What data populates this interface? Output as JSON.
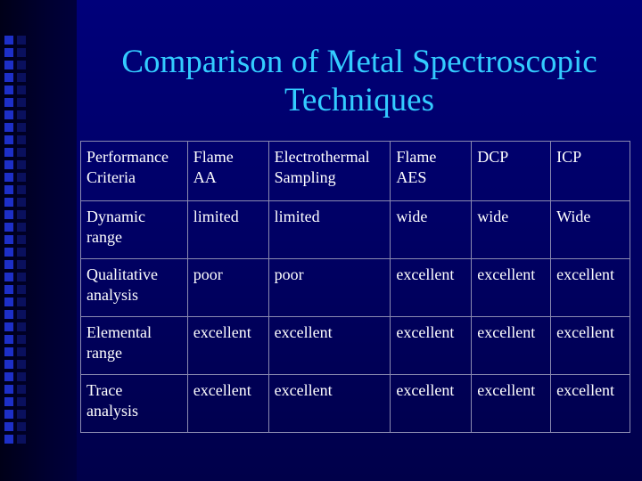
{
  "slide": {
    "title_line1": "Comparison of Metal Spectroscopic",
    "title_line2": "Techniques"
  },
  "table": {
    "header": {
      "criteria": [
        "Performance",
        "Criteria"
      ],
      "flame_aa": [
        "Flame",
        "AA"
      ],
      "electrothermal": [
        "Electrothermal",
        "Sampling"
      ],
      "flame_aes": [
        "Flame",
        "AES"
      ],
      "dcp": "DCP",
      "icp": "ICP"
    },
    "rows": [
      {
        "criterion": [
          "Dynamic",
          "range"
        ],
        "flame_aa": "limited",
        "electrothermal": "limited",
        "flame_aes": "wide",
        "dcp": "wide",
        "icp": "Wide"
      },
      {
        "criterion": [
          "Qualitative",
          "analysis"
        ],
        "flame_aa": "poor",
        "electrothermal": "poor",
        "flame_aes": "excellent",
        "dcp": "excellent",
        "icp": "excellent"
      },
      {
        "criterion": [
          "Elemental",
          "range"
        ],
        "flame_aa": "excellent",
        "electrothermal": "excellent",
        "flame_aes": "excellent",
        "dcp": "excellent",
        "icp": "excellent"
      },
      {
        "criterion": [
          "Trace",
          "analysis"
        ],
        "flame_aa": "excellent",
        "electrothermal": "excellent",
        "flame_aes": "excellent",
        "dcp": "excellent",
        "icp": "excellent"
      }
    ]
  },
  "colors": {
    "background": "#000066",
    "title": "#33ccff",
    "text": "#ffffff",
    "decor_squares": "#1d2fc8"
  }
}
